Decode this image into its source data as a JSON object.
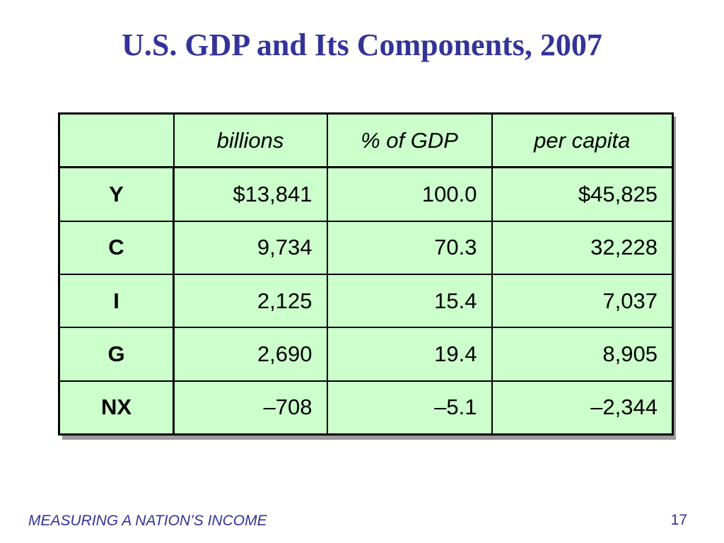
{
  "title": "U.S. GDP and Its Components, 2007",
  "table": {
    "headers": [
      "",
      "billions",
      "% of GDP",
      "per capita"
    ],
    "rows": [
      {
        "label": "Y",
        "billions": "$13,841",
        "pct_gdp": "100.0",
        "per_capita": "$45,825"
      },
      {
        "label": "C",
        "billions": "9,734",
        "pct_gdp": "70.3",
        "per_capita": "32,228"
      },
      {
        "label": "I",
        "billions": "2,125",
        "pct_gdp": "15.4",
        "per_capita": "7,037"
      },
      {
        "label": "G",
        "billions": "2,690",
        "pct_gdp": "19.4",
        "per_capita": "8,905"
      },
      {
        "label": "NX",
        "billions": "–708",
        "pct_gdp": "–5.1",
        "per_capita": "–2,344"
      }
    ]
  },
  "footer": {
    "section": "MEASURING A NATION’S INCOME",
    "page_number": "17"
  },
  "colors": {
    "title": "#333399",
    "table_fill": "#ccffcc",
    "footer": "#333399"
  }
}
